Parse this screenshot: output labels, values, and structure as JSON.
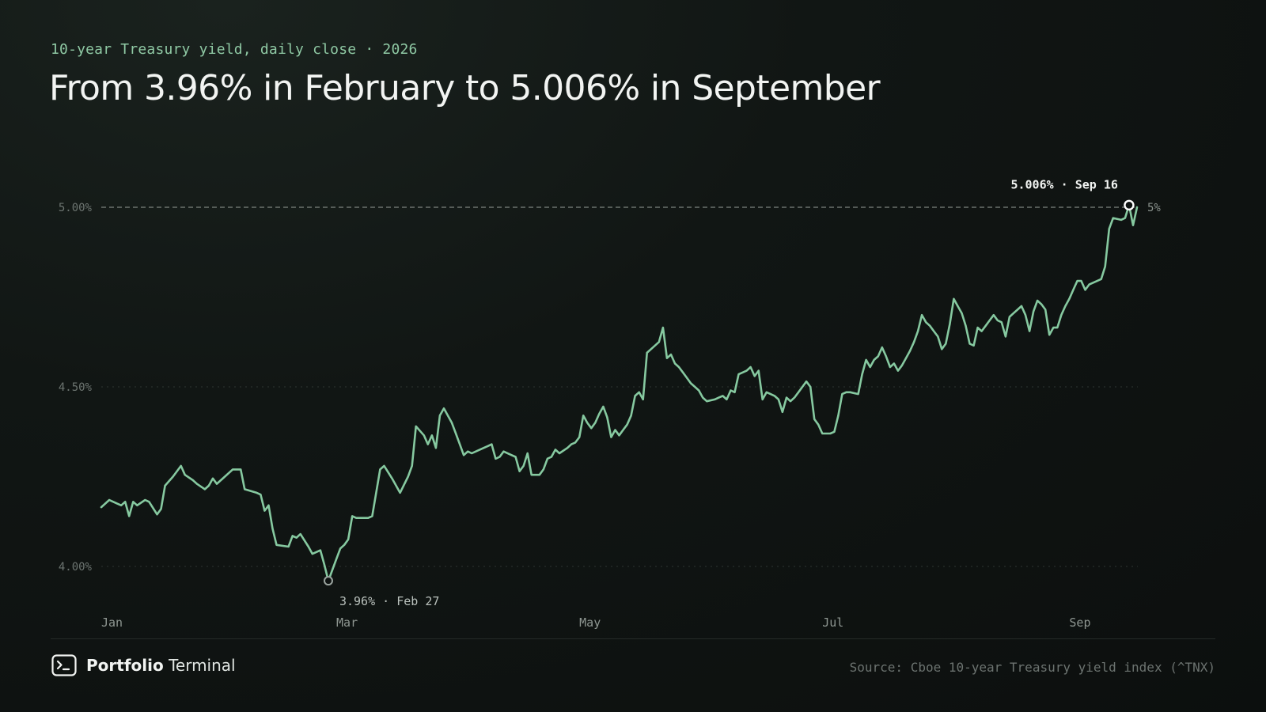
{
  "header": {
    "subtitle": "10-year Treasury yield, daily close · 2026",
    "title": "From 3.96% in February to 5.006% in September"
  },
  "colors": {
    "line": "#86c9a0",
    "background": "#0e1211",
    "grid": "#2e3532",
    "reference": "#7d847f"
  },
  "chart_data": {
    "type": "line",
    "title": "From 3.96% in February to 5.006% in September",
    "subtitle": "10-year Treasury yield, daily close · 2026",
    "xlabel": "",
    "ylabel": "",
    "ylim": [
      3.93,
      5.08
    ],
    "y_ticks": [
      {
        "value": 4.0,
        "label": "4.00%"
      },
      {
        "value": 4.5,
        "label": "4.50%"
      },
      {
        "value": 5.0,
        "label": "5.00%"
      }
    ],
    "x_ticks": [
      {
        "date": "2026-01-01",
        "label": "Jan"
      },
      {
        "date": "2026-03-01",
        "label": "Mar"
      },
      {
        "date": "2026-05-01",
        "label": "May"
      },
      {
        "date": "2026-07-01",
        "label": "Jul"
      },
      {
        "date": "2026-09-01",
        "label": "Sep"
      }
    ],
    "grid": true,
    "reference_line": {
      "value": 5.0,
      "label": "5%"
    },
    "series": [
      {
        "points": [
          [
            "2026-01-01",
            4.165
          ],
          [
            "2026-01-03",
            4.185
          ],
          [
            "2026-01-05",
            4.175
          ],
          [
            "2026-01-06",
            4.17
          ],
          [
            "2026-01-07",
            4.18
          ],
          [
            "2026-01-08",
            4.14
          ],
          [
            "2026-01-09",
            4.18
          ],
          [
            "2026-01-10",
            4.17
          ],
          [
            "2026-01-12",
            4.185
          ],
          [
            "2026-01-13",
            4.18
          ],
          [
            "2026-01-15",
            4.145
          ],
          [
            "2026-01-16",
            4.16
          ],
          [
            "2026-01-17",
            4.225
          ],
          [
            "2026-01-19",
            4.25
          ],
          [
            "2026-01-21",
            4.28
          ],
          [
            "2026-01-22",
            4.255
          ],
          [
            "2026-01-24",
            4.24
          ],
          [
            "2026-01-25",
            4.23
          ],
          [
            "2026-01-27",
            4.215
          ],
          [
            "2026-01-28",
            4.225
          ],
          [
            "2026-01-29",
            4.245
          ],
          [
            "2026-01-30",
            4.23
          ],
          [
            "2026-02-01",
            4.25
          ],
          [
            "2026-02-03",
            4.27
          ],
          [
            "2026-02-05",
            4.27
          ],
          [
            "2026-02-06",
            4.215
          ],
          [
            "2026-02-09",
            4.205
          ],
          [
            "2026-02-10",
            4.2
          ],
          [
            "2026-02-11",
            4.155
          ],
          [
            "2026-02-12",
            4.17
          ],
          [
            "2026-02-13",
            4.105
          ],
          [
            "2026-02-14",
            4.06
          ],
          [
            "2026-02-17",
            4.055
          ],
          [
            "2026-02-18",
            4.085
          ],
          [
            "2026-02-19",
            4.08
          ],
          [
            "2026-02-20",
            4.09
          ],
          [
            "2026-02-22",
            4.055
          ],
          [
            "2026-02-23",
            4.035
          ],
          [
            "2026-02-24",
            4.04
          ],
          [
            "2026-02-25",
            4.045
          ],
          [
            "2026-02-26",
            4.005
          ],
          [
            "2026-02-27",
            3.96
          ],
          [
            "2026-02-28",
            3.99
          ],
          [
            "2026-03-01",
            4.02
          ],
          [
            "2026-03-02",
            4.05
          ],
          [
            "2026-03-03",
            4.06
          ],
          [
            "2026-03-04",
            4.075
          ],
          [
            "2026-03-05",
            4.14
          ],
          [
            "2026-03-06",
            4.135
          ],
          [
            "2026-03-09",
            4.135
          ],
          [
            "2026-03-10",
            4.14
          ],
          [
            "2026-03-12",
            4.27
          ],
          [
            "2026-03-13",
            4.28
          ],
          [
            "2026-03-15",
            4.245
          ],
          [
            "2026-03-17",
            4.205
          ],
          [
            "2026-03-19",
            4.25
          ],
          [
            "2026-03-20",
            4.28
          ],
          [
            "2026-03-21",
            4.39
          ],
          [
            "2026-03-23",
            4.365
          ],
          [
            "2026-03-24",
            4.34
          ],
          [
            "2026-03-25",
            4.365
          ],
          [
            "2026-03-26",
            4.33
          ],
          [
            "2026-03-27",
            4.42
          ],
          [
            "2026-03-28",
            4.44
          ],
          [
            "2026-03-30",
            4.4
          ],
          [
            "2026-03-31",
            4.37
          ],
          [
            "2026-04-01",
            4.34
          ],
          [
            "2026-04-02",
            4.31
          ],
          [
            "2026-04-03",
            4.32
          ],
          [
            "2026-04-04",
            4.315
          ],
          [
            "2026-04-06",
            4.325
          ],
          [
            "2026-04-07",
            4.33
          ],
          [
            "2026-04-08",
            4.335
          ],
          [
            "2026-04-09",
            4.34
          ],
          [
            "2026-04-10",
            4.3
          ],
          [
            "2026-04-11",
            4.305
          ],
          [
            "2026-04-12",
            4.32
          ],
          [
            "2026-04-14",
            4.31
          ],
          [
            "2026-04-15",
            4.305
          ],
          [
            "2026-04-16",
            4.265
          ],
          [
            "2026-04-17",
            4.28
          ],
          [
            "2026-04-18",
            4.315
          ],
          [
            "2026-04-19",
            4.255
          ],
          [
            "2026-04-21",
            4.255
          ],
          [
            "2026-04-22",
            4.27
          ],
          [
            "2026-04-23",
            4.3
          ],
          [
            "2026-04-24",
            4.305
          ],
          [
            "2026-04-25",
            4.325
          ],
          [
            "2026-04-26",
            4.315
          ],
          [
            "2026-04-28",
            4.33
          ],
          [
            "2026-04-29",
            4.34
          ],
          [
            "2026-04-30",
            4.345
          ],
          [
            "2026-05-01",
            4.36
          ],
          [
            "2026-05-02",
            4.42
          ],
          [
            "2026-05-03",
            4.4
          ],
          [
            "2026-05-04",
            4.385
          ],
          [
            "2026-05-05",
            4.4
          ],
          [
            "2026-05-06",
            4.425
          ],
          [
            "2026-05-07",
            4.445
          ],
          [
            "2026-05-08",
            4.415
          ],
          [
            "2026-05-09",
            4.36
          ],
          [
            "2026-05-10",
            4.38
          ],
          [
            "2026-05-11",
            4.365
          ],
          [
            "2026-05-12",
            4.38
          ],
          [
            "2026-05-13",
            4.395
          ],
          [
            "2026-05-14",
            4.42
          ],
          [
            "2026-05-15",
            4.475
          ],
          [
            "2026-05-16",
            4.485
          ],
          [
            "2026-05-17",
            4.465
          ],
          [
            "2026-05-18",
            4.595
          ],
          [
            "2026-05-19",
            4.605
          ],
          [
            "2026-05-20",
            4.615
          ],
          [
            "2026-05-21",
            4.625
          ],
          [
            "2026-05-22",
            4.665
          ],
          [
            "2026-05-23",
            4.58
          ],
          [
            "2026-05-24",
            4.59
          ],
          [
            "2026-05-25",
            4.565
          ],
          [
            "2026-05-26",
            4.555
          ],
          [
            "2026-05-27",
            4.54
          ],
          [
            "2026-05-28",
            4.525
          ],
          [
            "2026-05-29",
            4.51
          ],
          [
            "2026-05-30",
            4.5
          ],
          [
            "2026-05-31",
            4.49
          ],
          [
            "2026-06-01",
            4.47
          ],
          [
            "2026-06-02",
            4.46
          ],
          [
            "2026-06-04",
            4.465
          ],
          [
            "2026-06-05",
            4.47
          ],
          [
            "2026-06-06",
            4.475
          ],
          [
            "2026-06-07",
            4.465
          ],
          [
            "2026-06-08",
            4.49
          ],
          [
            "2026-06-09",
            4.485
          ],
          [
            "2026-06-10",
            4.535
          ],
          [
            "2026-06-11",
            4.54
          ],
          [
            "2026-06-12",
            4.545
          ],
          [
            "2026-06-13",
            4.555
          ],
          [
            "2026-06-14",
            4.53
          ],
          [
            "2026-06-15",
            4.545
          ],
          [
            "2026-06-16",
            4.465
          ],
          [
            "2026-06-17",
            4.485
          ],
          [
            "2026-06-18",
            4.48
          ],
          [
            "2026-06-19",
            4.475
          ],
          [
            "2026-06-20",
            4.465
          ],
          [
            "2026-06-21",
            4.43
          ],
          [
            "2026-06-22",
            4.47
          ],
          [
            "2026-06-23",
            4.46
          ],
          [
            "2026-06-24",
            4.47
          ],
          [
            "2026-06-25",
            4.485
          ],
          [
            "2026-06-26",
            4.5
          ],
          [
            "2026-06-27",
            4.515
          ],
          [
            "2026-06-28",
            4.5
          ],
          [
            "2026-06-29",
            4.41
          ],
          [
            "2026-06-30",
            4.395
          ],
          [
            "2026-07-01",
            4.37
          ],
          [
            "2026-07-02",
            4.37
          ],
          [
            "2026-07-03",
            4.37
          ],
          [
            "2026-07-04",
            4.375
          ],
          [
            "2026-07-05",
            4.42
          ],
          [
            "2026-07-06",
            4.48
          ],
          [
            "2026-07-07",
            4.485
          ],
          [
            "2026-07-08",
            4.485
          ],
          [
            "2026-07-10",
            4.48
          ],
          [
            "2026-07-11",
            4.535
          ],
          [
            "2026-07-12",
            4.575
          ],
          [
            "2026-07-13",
            4.555
          ],
          [
            "2026-07-14",
            4.575
          ],
          [
            "2026-07-15",
            4.585
          ],
          [
            "2026-07-16",
            4.61
          ],
          [
            "2026-07-17",
            4.585
          ],
          [
            "2026-07-18",
            4.555
          ],
          [
            "2026-07-19",
            4.565
          ],
          [
            "2026-07-20",
            4.545
          ],
          [
            "2026-07-21",
            4.56
          ],
          [
            "2026-07-22",
            4.58
          ],
          [
            "2026-07-23",
            4.6
          ],
          [
            "2026-07-24",
            4.625
          ],
          [
            "2026-07-25",
            4.655
          ],
          [
            "2026-07-26",
            4.7
          ],
          [
            "2026-07-27",
            4.68
          ],
          [
            "2026-07-28",
            4.67
          ],
          [
            "2026-07-29",
            4.655
          ],
          [
            "2026-07-30",
            4.64
          ],
          [
            "2026-07-31",
            4.605
          ],
          [
            "2026-08-01",
            4.62
          ],
          [
            "2026-08-02",
            4.675
          ],
          [
            "2026-08-03",
            4.745
          ],
          [
            "2026-08-04",
            4.725
          ],
          [
            "2026-08-05",
            4.705
          ],
          [
            "2026-08-06",
            4.67
          ],
          [
            "2026-08-07",
            4.62
          ],
          [
            "2026-08-08",
            4.615
          ],
          [
            "2026-08-09",
            4.665
          ],
          [
            "2026-08-10",
            4.655
          ],
          [
            "2026-08-11",
            4.67
          ],
          [
            "2026-08-12",
            4.685
          ],
          [
            "2026-08-13",
            4.7
          ],
          [
            "2026-08-14",
            4.685
          ],
          [
            "2026-08-15",
            4.68
          ],
          [
            "2026-08-16",
            4.64
          ],
          [
            "2026-08-17",
            4.695
          ],
          [
            "2026-08-18",
            4.705
          ],
          [
            "2026-08-19",
            4.715
          ],
          [
            "2026-08-20",
            4.725
          ],
          [
            "2026-08-21",
            4.7
          ],
          [
            "2026-08-22",
            4.655
          ],
          [
            "2026-08-23",
            4.71
          ],
          [
            "2026-08-24",
            4.74
          ],
          [
            "2026-08-25",
            4.73
          ],
          [
            "2026-08-26",
            4.715
          ],
          [
            "2026-08-27",
            4.645
          ],
          [
            "2026-08-28",
            4.665
          ],
          [
            "2026-08-29",
            4.665
          ],
          [
            "2026-08-30",
            4.7
          ],
          [
            "2026-08-31",
            4.725
          ],
          [
            "2026-09-01",
            4.745
          ],
          [
            "2026-09-02",
            4.77
          ],
          [
            "2026-09-03",
            4.795
          ],
          [
            "2026-09-04",
            4.795
          ],
          [
            "2026-09-05",
            4.77
          ],
          [
            "2026-09-06",
            4.785
          ],
          [
            "2026-09-09",
            4.8
          ],
          [
            "2026-09-10",
            4.835
          ],
          [
            "2026-09-11",
            4.94
          ],
          [
            "2026-09-12",
            4.97
          ],
          [
            "2026-09-14",
            4.965
          ],
          [
            "2026-09-15",
            4.97
          ],
          [
            "2026-09-16",
            5.006
          ],
          [
            "2026-09-17",
            4.95
          ],
          [
            "2026-09-18",
            5.0
          ]
        ]
      }
    ],
    "annotations": [
      {
        "date": "2026-02-27",
        "value": 3.96,
        "label": "3.96% · Feb 27",
        "kind": "low"
      },
      {
        "date": "2026-09-16",
        "value": 5.006,
        "label": "5.006% · Sep 16",
        "kind": "high"
      }
    ]
  },
  "footer": {
    "brand_strong": "Portfolio",
    "brand_light": "Terminal",
    "source": "Source: Cboe 10-year Treasury yield index (^TNX)"
  }
}
